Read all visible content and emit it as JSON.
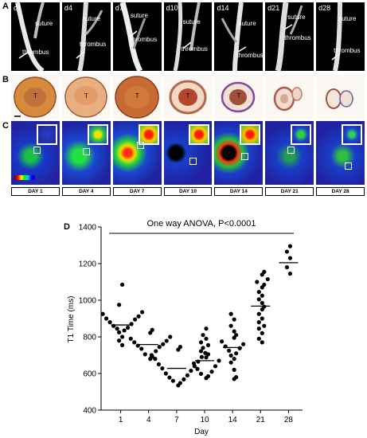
{
  "panels": {
    "a": {
      "letter": "A",
      "frames": [
        {
          "day": "d1",
          "labels": [
            "suture",
            "thrombus"
          ]
        },
        {
          "day": "d4",
          "labels": [
            "suture",
            "thrombus"
          ]
        },
        {
          "day": "d7",
          "labels": [
            "suture",
            "thrombus"
          ]
        },
        {
          "day": "d10",
          "labels": [
            "suture",
            "thrombus"
          ]
        },
        {
          "day": "d14",
          "labels": [
            "suture",
            "thrombus"
          ]
        },
        {
          "day": "d21",
          "labels": [
            "suture",
            "thrombus"
          ]
        },
        {
          "day": "d28",
          "labels": [
            "suture",
            "thrombus"
          ]
        }
      ]
    },
    "b": {
      "letter": "B",
      "mark": "T"
    },
    "c": {
      "letter": "C",
      "days": [
        "DAY 1",
        "DAY 4",
        "DAY 7",
        "DAY 10",
        "DAY 14",
        "DAY 21",
        "DAY 28"
      ]
    }
  },
  "chart_data": {
    "type": "scatter",
    "panel_letter": "D",
    "annotation": "One way ANOVA, P<0.0001",
    "xlabel": "Day",
    "ylabel": "T1 Time (ms)",
    "categories": [
      "1",
      "4",
      "7",
      "10",
      "14",
      "21",
      "28"
    ],
    "ylim": [
      400,
      1400
    ],
    "yticks": [
      400,
      600,
      800,
      1000,
      1200,
      1400
    ],
    "means": [
      865,
      758,
      628,
      670,
      742,
      968,
      1205
    ],
    "points": [
      [
        1085,
        975,
        935,
        925,
        912,
        900,
        895,
        880,
        870,
        860,
        850,
        845,
        835,
        825,
        800,
        780,
        755
      ],
      [
        838,
        822,
        800,
        790,
        778,
        770,
        760,
        752,
        745,
        735,
        722,
        705,
        692,
        680
      ],
      [
        745,
        730,
        712,
        700,
        690,
        680,
        665,
        650,
        640,
        628,
        615,
        600,
        590,
        578,
        568,
        560,
        548,
        535
      ],
      [
        845,
        810,
        790,
        770,
        755,
        740,
        722,
        705,
        688,
        670,
        655,
        640,
        625,
        610,
        598,
        585,
        575
      ],
      [
        925,
        895,
        860,
        830,
        810,
        795,
        775,
        760,
        748,
        738,
        725,
        710,
        698,
        680,
        660,
        620,
        580,
        570
      ],
      [
        1155,
        1140,
        1115,
        1100,
        1085,
        1070,
        1045,
        1025,
        1005,
        985,
        965,
        950,
        925,
        900,
        880,
        860,
        845,
        820,
        790,
        770
      ],
      [
        1295,
        1265,
        1230,
        1180,
        1145
      ]
    ]
  }
}
